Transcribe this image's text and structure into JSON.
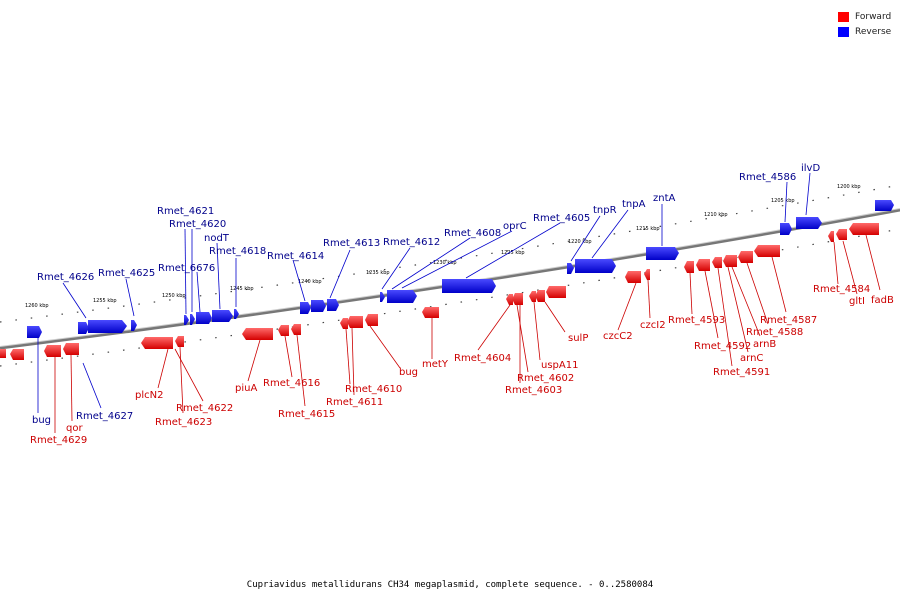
{
  "legend": {
    "forward_label": "Forward",
    "reverse_label": "Reverse",
    "forward_color": "#ff0000",
    "reverse_color": "#0000ff"
  },
  "caption": "Cupriavidus metallidurans CH34 megaplasmid, complete sequence. - 0..2580084",
  "kbp_ticks": [
    "1200 kbp",
    "1205 kbp",
    "1210 kbp",
    "1215 kbp",
    "1220 kbp",
    "1225 kbp",
    "1230 kbp",
    "1235 kbp",
    "1240 kbp",
    "1245 kbp",
    "1250 kbp",
    "1255 kbp",
    "1260 kbp"
  ],
  "forward_labels": [
    "Rmet_4629",
    "qor",
    "plcN2",
    "Rmet_4622",
    "Rmet_4623",
    "piuA",
    "Rmet_4616",
    "Rmet_4615",
    "Rmet_4610",
    "Rmet_4611",
    "bug",
    "metY",
    "Rmet_4604",
    "Rmet_4602",
    "Rmet_4603",
    "uspA11",
    "sulP",
    "czcC2",
    "czcI2",
    "Rmet_4593",
    "Rmet_4592",
    "arnC",
    "Rmet_4591",
    "arnB",
    "Rmet_4588",
    "Rmet_4587",
    "Rmet_4584",
    "gltI",
    "fadB"
  ],
  "reverse_labels": [
    "bug",
    "Rmet_4627",
    "Rmet_4626",
    "Rmet_4625",
    "Rmet_6676",
    "Rmet_4621",
    "Rmet_4620",
    "nodT",
    "Rmet_4618",
    "Rmet_4614",
    "Rmet_4613",
    "Rmet_4612",
    "Rmet_4608",
    "oprC",
    "Rmet_4605",
    "tnpR",
    "tnpA",
    "zntA",
    "Rmet_4586",
    "ilvD"
  ]
}
